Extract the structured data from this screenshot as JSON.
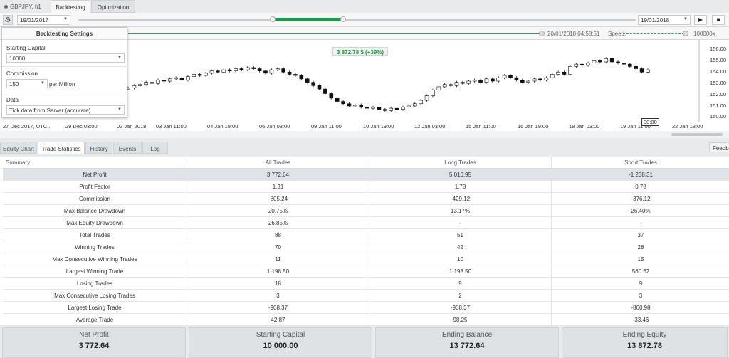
{
  "window": {
    "symbol": "GBPJPY, h1"
  },
  "tabs": [
    {
      "label": "Backtesting"
    },
    {
      "label": "Optimization"
    }
  ],
  "controls": {
    "start_date": "19/01/2017",
    "end_date": "19/01/2018",
    "play_icon": "play-icon",
    "stop_icon": "stop-icon",
    "settings_icon": "gear-icon"
  },
  "playback": {
    "current_time": "20/01/2018 04:58:51",
    "speed_label": "Speed:",
    "speed_value": "100000x"
  },
  "settings_popup": {
    "title": "Backtesting Settings",
    "starting_capital_label": "Starting Capital",
    "starting_capital_value": "10000",
    "commission_label": "Commission",
    "commission_value": "150",
    "commission_unit": "per Million",
    "data_label": "Data",
    "data_value": "Tick data from Server (accurate)"
  },
  "chart": {
    "pnl_badge": "3 872.78 $ (+39%)",
    "y_ticks": [
      "156.00",
      "155.00",
      "154.00",
      "153.00",
      "152.00",
      "151.00",
      "150.00"
    ],
    "x_ticks": [
      "27 Dec 2017, UTC...",
      "29 Dec 03:00",
      "02 Jan 2018",
      "03 Jan 11:00",
      "04 Jan 19:00",
      "06 Jan 03:00",
      "09 Jan 11:00",
      "10 Jan 19:00",
      "12 Jan 03:00",
      "15 Jan 11:00",
      "16 Jan 19:00",
      "18 Jan 03:00",
      "19 Jan 11:00",
      "22 Jan 18:00"
    ],
    "cursor_label": "00:00"
  },
  "chart_data": {
    "type": "candlestick",
    "ylim": [
      149.5,
      156.3
    ],
    "close": [
      152.3,
      152.5,
      152.6,
      152.8,
      152.7,
      153.0,
      152.9,
      153.1,
      153.2,
      153.0,
      153.3,
      153.5,
      153.4,
      153.6,
      153.8,
      153.7,
      153.9,
      153.8,
      154.0,
      153.9,
      154.1,
      154.0,
      153.8,
      153.6,
      153.9,
      154.0,
      153.7,
      153.5,
      153.4,
      153.1,
      152.8,
      152.5,
      152.2,
      151.8,
      151.4,
      151.1,
      150.9,
      150.7,
      150.8,
      150.6,
      150.5,
      150.6,
      150.4,
      150.3,
      150.5,
      150.4,
      150.6,
      150.7,
      150.9,
      151.2,
      151.6,
      152.1,
      152.4,
      152.6,
      152.5,
      152.8,
      152.7,
      152.9,
      153.0,
      152.8,
      153.1,
      152.9,
      153.2,
      153.4,
      153.2,
      153.0,
      152.8,
      152.9,
      153.1,
      153.0,
      153.2,
      153.5,
      153.7,
      153.5,
      154.2,
      154.4,
      154.3,
      154.5,
      154.7,
      154.6,
      154.9,
      154.6,
      154.5,
      154.4,
      154.2,
      154.0,
      153.7,
      153.9
    ],
    "x_start": "27 Dec 2017",
    "x_end": "22 Jan 2018"
  },
  "bottom_tabs": [
    {
      "label": "Equity Chart"
    },
    {
      "label": "Trade Statistics"
    },
    {
      "label": "History"
    },
    {
      "label": "Events"
    },
    {
      "label": "Log"
    }
  ],
  "feedback_label": "Feedback",
  "stats": {
    "headers": [
      "Summary",
      "All Trades",
      "Long Trades",
      "Short Trades"
    ],
    "rows": [
      [
        "Net Profit",
        "3 772.64",
        "5 010.95",
        "-1 238.31"
      ],
      [
        "Profit Factor",
        "1.31",
        "1.78",
        "0.78"
      ],
      [
        "Commission",
        "-805.24",
        "-429.12",
        "-376.12"
      ],
      [
        "Max Balance Drawdown",
        "20.75%",
        "13.17%",
        "26.40%"
      ],
      [
        "Max Equity Drawdown",
        "26.85%",
        "-",
        "-"
      ],
      [
        "Total Trades",
        "88",
        "51",
        "37"
      ],
      [
        "Winning Trades",
        "70",
        "42",
        "28"
      ],
      [
        "Max Consecutive Winning Trades",
        "11",
        "10",
        "15"
      ],
      [
        "Largest Winning Trade",
        "1 198.50",
        "1 198.50",
        "560.62"
      ],
      [
        "Losing Trades",
        "18",
        "9",
        "9"
      ],
      [
        "Max Consecutive Losing Trades",
        "3",
        "2",
        "3"
      ],
      [
        "Largest Losing Trade",
        "-908.37",
        "-908.37",
        "-860.98"
      ],
      [
        "Average Trade",
        "42.87",
        "98.25",
        "-33.46"
      ]
    ]
  },
  "summary_cards": [
    {
      "label": "Net Profit",
      "value": "3 772.64"
    },
    {
      "label": "Starting Capital",
      "value": "10 000.00"
    },
    {
      "label": "Ending Balance",
      "value": "13 772.64"
    },
    {
      "label": "Ending Equity",
      "value": "13 872.78"
    }
  ],
  "colors": {
    "accent": "#1a9b4a",
    "profit_text": "#1a9b4a"
  }
}
